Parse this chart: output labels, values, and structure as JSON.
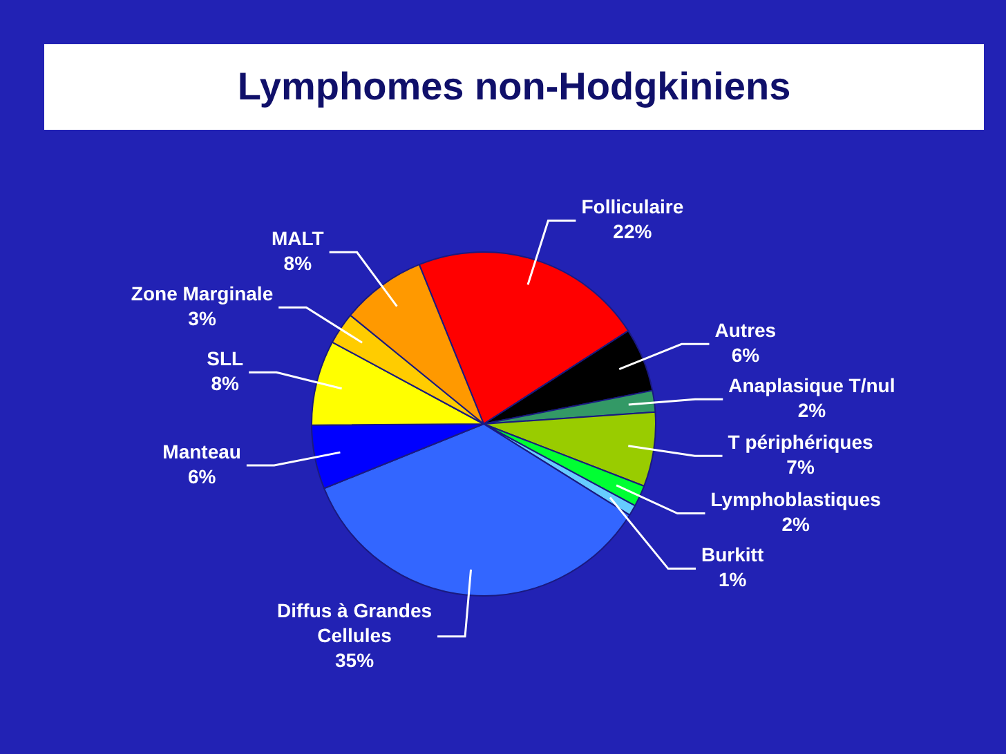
{
  "chart_data": {
    "type": "pie",
    "title": "Lymphomes non-Hodgkiniens",
    "categories": [
      "Folliculaire",
      "Autres",
      "Anaplasique T/nul",
      "T périphériques",
      "Lymphoblastiques",
      "Burkitt",
      "Diffus à Grandes Cellules",
      "Manteau",
      "SLL",
      "Zone Marginale",
      "MALT"
    ],
    "values": [
      22,
      6,
      2,
      7,
      2,
      1,
      35,
      6,
      8,
      3,
      8
    ],
    "value_labels": [
      "22%",
      "6%",
      "2%",
      "7%",
      "2%",
      "1%",
      "35%",
      "6%",
      "8%",
      "3%",
      "8%"
    ],
    "colors": [
      "#ff0000",
      "#000000",
      "#339966",
      "#99cc00",
      "#00ff33",
      "#66ccff",
      "#3366ff",
      "#0000ff",
      "#ffff00",
      "#ffcc00",
      "#ff9900"
    ]
  }
}
